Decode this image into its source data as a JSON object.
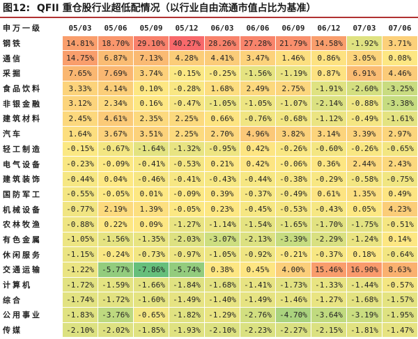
{
  "title": "图12:  QFII 重仓股行业超低配情况（以行业自由流通市值占比为基准）",
  "table": {
    "header": [
      "申万一级",
      "05/03",
      "05/06",
      "05/09",
      "05/12",
      "06/03",
      "06/06",
      "06/09",
      "06/12",
      "07/03",
      "07/06"
    ],
    "rows": [
      [
        "钢铁",
        "14.81%",
        "18.70%",
        "29.10%",
        "40.27%",
        "28.26%",
        "27.28%",
        "21.79%",
        "14.58%",
        "-1.92%",
        "3.71%"
      ],
      [
        "通信",
        "14.75%",
        "6.87%",
        "7.13%",
        "4.28%",
        "4.41%",
        "3.47%",
        "1.46%",
        "0.86%",
        "3.05%",
        "0.08%"
      ],
      [
        "采掘",
        "7.65%",
        "7.69%",
        "3.74%",
        "-0.15%",
        "-0.25%",
        "-1.56%",
        "-1.19%",
        "0.87%",
        "6.91%",
        "4.46%"
      ],
      [
        "食品饮料",
        "3.33%",
        "4.14%",
        "0.10%",
        "-0.28%",
        "1.68%",
        "2.49%",
        "2.75%",
        "-1.91%",
        "-2.60%",
        "-3.25%"
      ],
      [
        "非银金融",
        "3.12%",
        "2.34%",
        "0.16%",
        "-0.47%",
        "-1.05%",
        "-1.05%",
        "-1.07%",
        "-2.14%",
        "-0.88%",
        "-3.38%"
      ],
      [
        "建筑材料",
        "2.45%",
        "4.61%",
        "2.35%",
        "2.25%",
        "0.66%",
        "-0.76%",
        "-0.68%",
        "-1.12%",
        "-0.49%",
        "-1.61%"
      ],
      [
        "汽车",
        "1.64%",
        "3.67%",
        "3.51%",
        "2.25%",
        "2.70%",
        "4.96%",
        "3.82%",
        "3.14%",
        "3.39%",
        "2.97%"
      ],
      [
        "轻工制造",
        "-0.15%",
        "-0.67%",
        "-1.64%",
        "-1.32%",
        "-0.95%",
        "0.42%",
        "-0.26%",
        "-0.60%",
        "-0.26%",
        "-0.65%"
      ],
      [
        "电气设备",
        "-0.23%",
        "-0.09%",
        "-0.41%",
        "-0.53%",
        "0.21%",
        "0.42%",
        "-0.06%",
        "0.36%",
        "2.44%",
        "2.43%"
      ],
      [
        "建筑装饰",
        "-0.44%",
        "0.04%",
        "-0.46%",
        "-0.41%",
        "-0.43%",
        "-0.44%",
        "-0.38%",
        "-0.29%",
        "-0.58%",
        "-0.75%"
      ],
      [
        "国防军工",
        "-0.55%",
        "-0.05%",
        "0.01%",
        "-0.09%",
        "0.39%",
        "-0.37%",
        "-0.49%",
        "0.61%",
        "1.35%",
        "0.49%"
      ],
      [
        "机械设备",
        "-0.77%",
        "2.19%",
        "1.39%",
        "-0.05%",
        "0.23%",
        "-0.45%",
        "-0.53%",
        "-0.43%",
        "0.05%",
        "4.23%"
      ],
      [
        "农林牧渔",
        "-0.88%",
        "0.22%",
        "0.09%",
        "-1.27%",
        "-1.14%",
        "-1.54%",
        "-1.65%",
        "-1.70%",
        "-1.75%",
        "-0.51%"
      ],
      [
        "有色金属",
        "-1.05%",
        "-1.56%",
        "-1.35%",
        "-2.03%",
        "-3.07%",
        "-2.13%",
        "-3.39%",
        "-2.29%",
        "-1.24%",
        "0.14%"
      ],
      [
        "休闲服务",
        "-1.15%",
        "-0.24%",
        "-0.73%",
        "-0.97%",
        "-1.05%",
        "-0.92%",
        "-0.21%",
        "-0.37%",
        "0.18%",
        "-0.64%"
      ],
      [
        "交通运输",
        "-1.22%",
        "-5.77%",
        "-7.86%",
        "-5.74%",
        "0.38%",
        "0.45%",
        "4.00%",
        "15.46%",
        "16.90%",
        "8.63%"
      ],
      [
        "计算机",
        "-1.72%",
        "-1.59%",
        "-1.66%",
        "-1.84%",
        "-1.68%",
        "-1.41%",
        "-1.73%",
        "-1.33%",
        "-1.44%",
        "-0.57%"
      ],
      [
        "综合",
        "-1.74%",
        "-1.72%",
        "-1.60%",
        "-1.49%",
        "-1.40%",
        "-1.49%",
        "-1.46%",
        "-1.27%",
        "-1.68%",
        "-1.57%"
      ],
      [
        "公用事业",
        "-1.83%",
        "-3.76%",
        "-0.65%",
        "-1.82%",
        "-1.29%",
        "-2.76%",
        "-4.70%",
        "-3.64%",
        "-3.19%",
        "-1.95%"
      ],
      [
        "传媒",
        "-2.10%",
        "-2.02%",
        "-1.85%",
        "-1.93%",
        "-2.10%",
        "-2.23%",
        "-2.27%",
        "-2.15%",
        "-1.81%",
        "-1.47%"
      ]
    ]
  }
}
